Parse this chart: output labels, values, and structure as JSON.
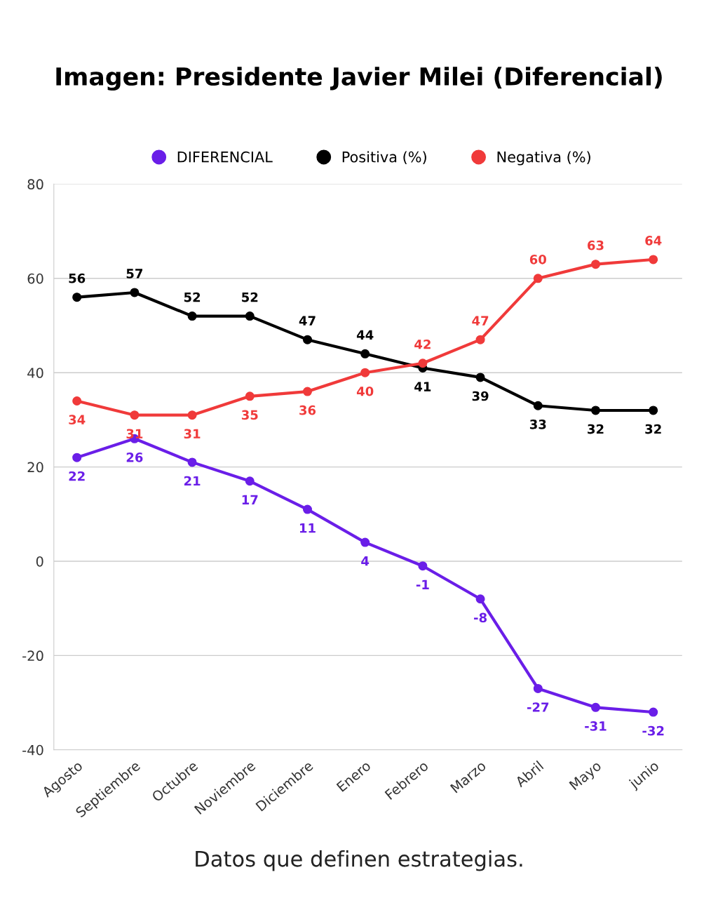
{
  "chart_data": {
    "type": "line",
    "title": "Imagen: Presidente Javier Milei (Diferencial)",
    "categories": [
      "Agosto",
      "Septiembre",
      "Octubre",
      "Noviembre",
      "Diciembre",
      "Enero",
      "Febrero",
      "Marzo",
      "Abril",
      "Mayo",
      "junio"
    ],
    "series": [
      {
        "name": "DIFERENCIAL",
        "color": "#6a1ee8",
        "values": [
          22,
          26,
          21,
          17,
          11,
          4,
          -1,
          -8,
          -27,
          -31,
          -32
        ]
      },
      {
        "name": "Positiva (%)",
        "color": "#000000",
        "values": [
          56,
          57,
          52,
          52,
          47,
          44,
          41,
          39,
          33,
          32,
          32
        ]
      },
      {
        "name": "Negativa (%)",
        "color": "#f03a3a",
        "values": [
          34,
          31,
          31,
          35,
          36,
          40,
          42,
          47,
          60,
          63,
          64
        ]
      }
    ],
    "ylim": [
      -40,
      80
    ],
    "yticks": [
      -40,
      -20,
      0,
      20,
      40,
      60,
      80
    ],
    "grid": "y",
    "legend": "top",
    "marker": "circle",
    "line_style": "solid",
    "data_labels": true,
    "annotations": [
      "Datos que definen estrategias."
    ]
  }
}
